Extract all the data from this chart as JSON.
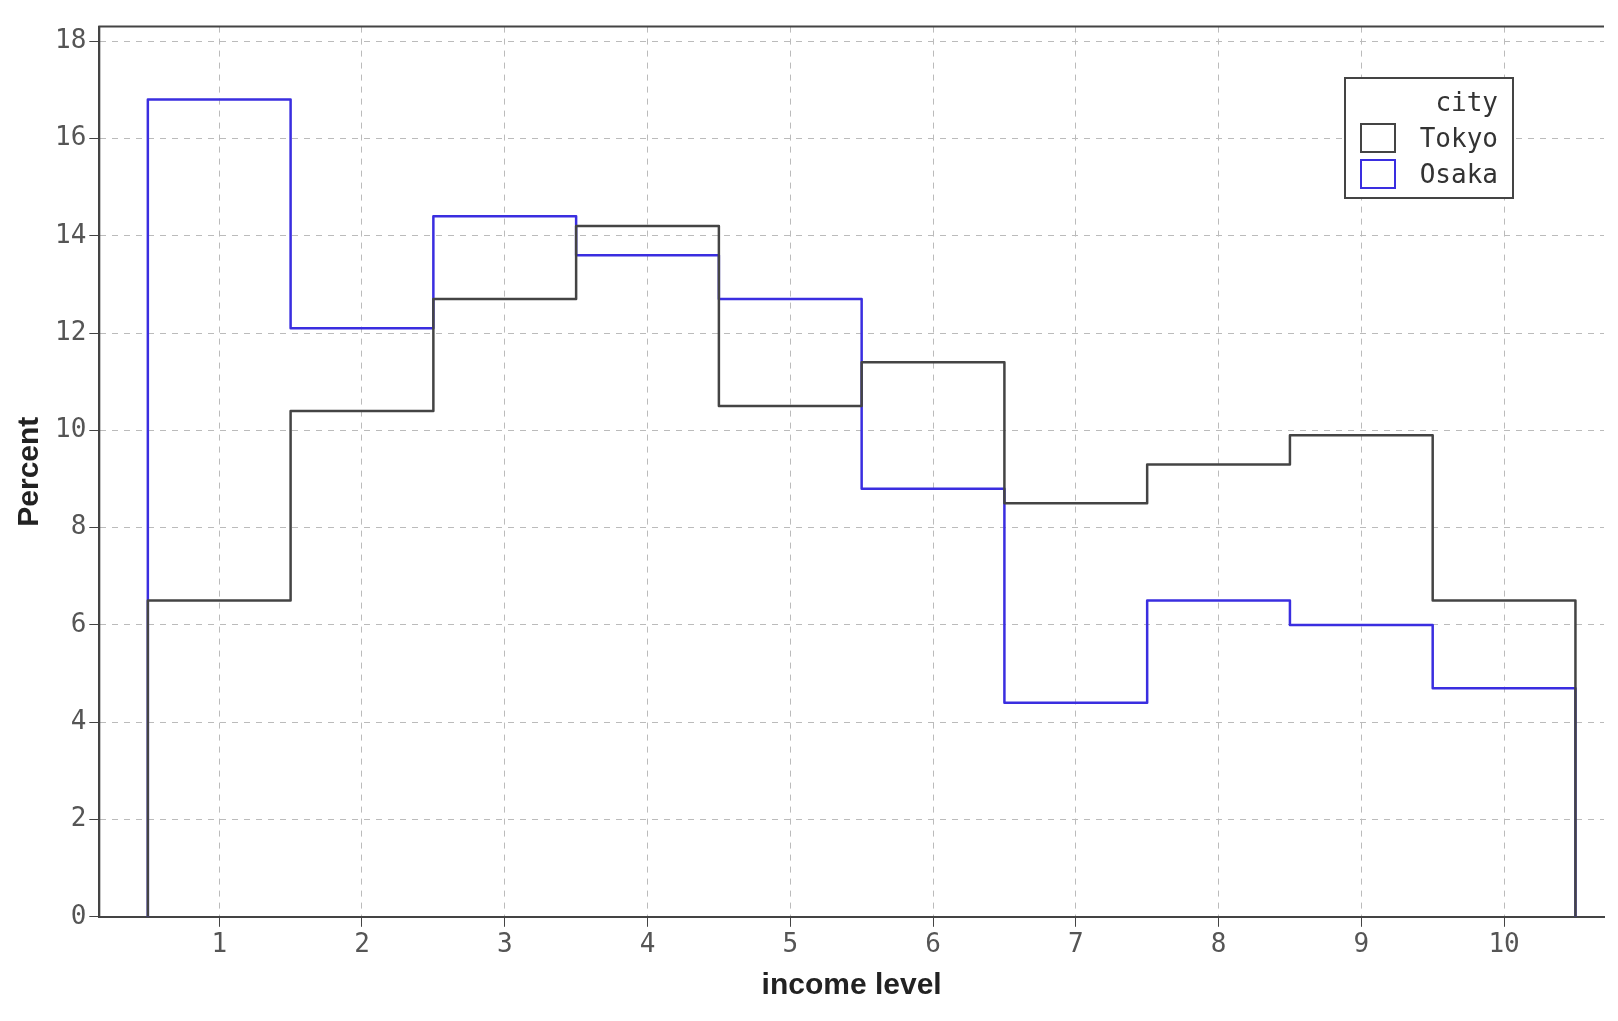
{
  "chart_data": {
    "type": "histogram",
    "xlabel": "income level",
    "ylabel": "Percent",
    "legend_title": "city",
    "bins": [
      0.5,
      1.5,
      2.5,
      3.5,
      4.5,
      5.5,
      6.5,
      7.5,
      8.5,
      9.5,
      10.5
    ],
    "series": [
      {
        "name": "Tokyo",
        "color": "#444444",
        "values": [
          6.5,
          10.4,
          12.7,
          14.2,
          10.5,
          11.4,
          8.5,
          9.3,
          9.9,
          6.5
        ]
      },
      {
        "name": "Osaka",
        "color": "#3a2ee0",
        "values": [
          16.8,
          12.1,
          14.4,
          13.6,
          12.7,
          8.8,
          4.4,
          6.5,
          6.0,
          4.7
        ]
      }
    ],
    "xlim": [
      0.16,
      10.7
    ],
    "xticks": [
      1,
      2,
      3,
      4,
      5,
      6,
      7,
      8,
      9,
      10
    ],
    "ylim": [
      0,
      18.3
    ],
    "yticks": [
      0,
      2,
      4,
      6,
      8,
      10,
      12,
      14,
      16,
      18
    ],
    "grid": true,
    "legend": "top right",
    "line_style": "solid"
  }
}
